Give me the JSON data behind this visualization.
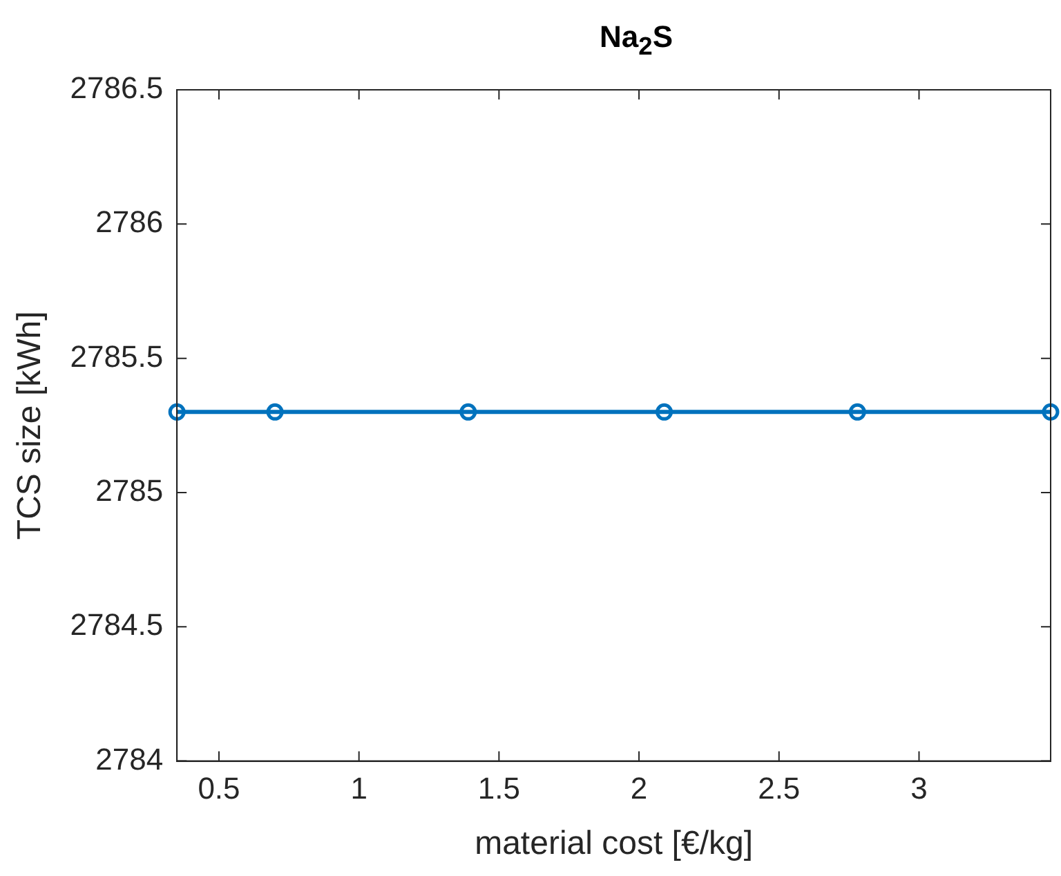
{
  "chart_data": {
    "type": "line",
    "title": "Na$_{2}$S",
    "xlabel": "material cost [€/kg]",
    "ylabel": "TCS size [kWh]",
    "x": [
      0.35,
      0.7,
      1.39,
      2.09,
      2.78,
      3.47
    ],
    "series": [
      {
        "color": "#0072bd",
        "values": [
          2785.3,
          2785.3,
          2785.3,
          2785.3,
          2785.3,
          2785.3
        ]
      }
    ],
    "xlim": [
      0.35,
      3.47
    ],
    "xticks": [
      0.5,
      1,
      1.5,
      2,
      2.5,
      3
    ],
    "ylim": [
      2784,
      2786.5
    ],
    "yticks": [
      2784,
      2784.5,
      2785,
      2785.5,
      2786,
      2786.5
    ],
    "grid": false,
    "legend": false,
    "marker": "circle",
    "line_style": "solid"
  }
}
